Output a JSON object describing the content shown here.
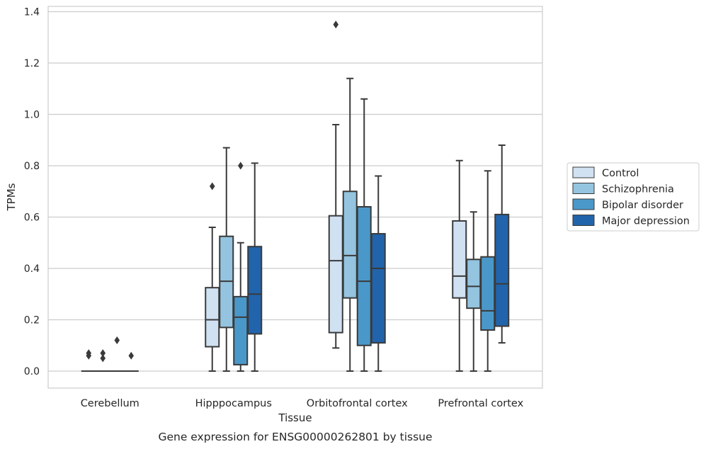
{
  "chart_data": {
    "type": "box",
    "title": "",
    "caption": "Gene expression for ENSG00000262801 by tissue",
    "xlabel": "Tissue",
    "ylabel": "TPMs",
    "ylim": [
      -0.065,
      1.42
    ],
    "yticks": [
      0.0,
      0.2,
      0.4,
      0.6,
      0.8,
      1.0,
      1.2,
      1.4
    ],
    "ytick_labels": [
      "0.0",
      "0.2",
      "0.4",
      "0.6",
      "0.8",
      "1.0",
      "1.2",
      "1.4"
    ],
    "grid": "horizontal",
    "legend_position": "right",
    "categories": [
      "Cerebellum",
      "Hipppocampus",
      "Orbitofrontal cortex",
      "Prefrontal cortex"
    ],
    "series": [
      {
        "name": "Control",
        "color": "#d0e1f2",
        "boxes": [
          {
            "whisker_low": 0.0,
            "q1": 0.0,
            "median": 0.0,
            "q3": 0.0,
            "whisker_high": 0.0,
            "outliers": [
              0.06,
              0.07
            ]
          },
          {
            "whisker_low": 0.0,
            "q1": 0.095,
            "median": 0.2,
            "q3": 0.325,
            "whisker_high": 0.56,
            "outliers": [
              0.72
            ]
          },
          {
            "whisker_low": 0.09,
            "q1": 0.15,
            "median": 0.43,
            "q3": 0.605,
            "whisker_high": 0.96,
            "outliers": [
              1.35
            ]
          },
          {
            "whisker_low": 0.0,
            "q1": 0.285,
            "median": 0.37,
            "q3": 0.585,
            "whisker_high": 0.82,
            "outliers": []
          }
        ]
      },
      {
        "name": "Schizophrenia",
        "color": "#94c4df",
        "boxes": [
          {
            "whisker_low": 0.0,
            "q1": 0.0,
            "median": 0.0,
            "q3": 0.0,
            "whisker_high": 0.0,
            "outliers": [
              0.05,
              0.07
            ]
          },
          {
            "whisker_low": 0.0,
            "q1": 0.17,
            "median": 0.35,
            "q3": 0.525,
            "whisker_high": 0.87,
            "outliers": []
          },
          {
            "whisker_low": 0.0,
            "q1": 0.285,
            "median": 0.45,
            "q3": 0.7,
            "whisker_high": 1.14,
            "outliers": []
          },
          {
            "whisker_low": 0.0,
            "q1": 0.245,
            "median": 0.33,
            "q3": 0.435,
            "whisker_high": 0.62,
            "outliers": []
          }
        ]
      },
      {
        "name": "Bipolar disorder",
        "color": "#4a98c9",
        "boxes": [
          {
            "whisker_low": 0.0,
            "q1": 0.0,
            "median": 0.0,
            "q3": 0.0,
            "whisker_high": 0.0,
            "outliers": [
              0.12
            ]
          },
          {
            "whisker_low": 0.0,
            "q1": 0.025,
            "median": 0.21,
            "q3": 0.29,
            "whisker_high": 0.5,
            "outliers": [
              0.8
            ]
          },
          {
            "whisker_low": 0.0,
            "q1": 0.1,
            "median": 0.35,
            "q3": 0.64,
            "whisker_high": 1.06,
            "outliers": []
          },
          {
            "whisker_low": 0.0,
            "q1": 0.16,
            "median": 0.235,
            "q3": 0.445,
            "whisker_high": 0.78,
            "outliers": []
          }
        ]
      },
      {
        "name": "Major depression",
        "color": "#2164ab",
        "boxes": [
          {
            "whisker_low": 0.0,
            "q1": 0.0,
            "median": 0.0,
            "q3": 0.0,
            "whisker_high": 0.0,
            "outliers": [
              0.06
            ]
          },
          {
            "whisker_low": 0.0,
            "q1": 0.145,
            "median": 0.3,
            "q3": 0.485,
            "whisker_high": 0.81,
            "outliers": []
          },
          {
            "whisker_low": 0.0,
            "q1": 0.11,
            "median": 0.4,
            "q3": 0.535,
            "whisker_high": 0.76,
            "outliers": []
          },
          {
            "whisker_low": 0.11,
            "q1": 0.175,
            "median": 0.34,
            "q3": 0.61,
            "whisker_high": 0.88,
            "outliers": []
          }
        ]
      }
    ]
  }
}
